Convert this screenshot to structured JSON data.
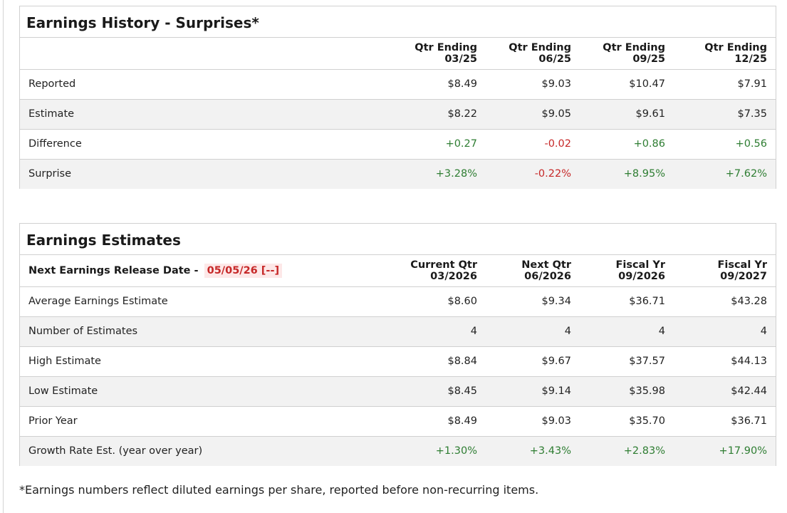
{
  "history": {
    "title": "Earnings History - Surprises*",
    "columns": [
      {
        "line1": "Qtr Ending",
        "line2": "03/25"
      },
      {
        "line1": "Qtr Ending",
        "line2": "06/25"
      },
      {
        "line1": "Qtr Ending",
        "line2": "09/25"
      },
      {
        "line1": "Qtr Ending",
        "line2": "12/25"
      }
    ],
    "rows": [
      {
        "label": "Reported",
        "values": [
          "$8.49",
          "$9.03",
          "$10.47",
          "$7.91"
        ]
      },
      {
        "label": "Estimate",
        "values": [
          "$8.22",
          "$9.05",
          "$9.61",
          "$7.35"
        ]
      },
      {
        "label": "Difference",
        "values": [
          "+0.27",
          "-0.02",
          "+0.86",
          "+0.56"
        ]
      },
      {
        "label": "Surprise",
        "values": [
          "+3.28%",
          "-0.22%",
          "+8.95%",
          "+7.62%"
        ]
      }
    ]
  },
  "estimates": {
    "title": "Earnings Estimates",
    "release_label": "Next Earnings Release Date - ",
    "release_date": "05/05/26 [--]",
    "columns": [
      {
        "line1": "Current Qtr",
        "line2": "03/2026"
      },
      {
        "line1": "Next Qtr",
        "line2": "06/2026"
      },
      {
        "line1": "Fiscal Yr",
        "line2": "09/2026"
      },
      {
        "line1": "Fiscal Yr",
        "line2": "09/2027"
      }
    ],
    "rows": [
      {
        "label": "Average Earnings Estimate",
        "values": [
          "$8.60",
          "$9.34",
          "$36.71",
          "$43.28"
        ]
      },
      {
        "label": "Number of Estimates",
        "values": [
          "4",
          "4",
          "4",
          "4"
        ]
      },
      {
        "label": "High Estimate",
        "values": [
          "$8.84",
          "$9.67",
          "$37.57",
          "$44.13"
        ]
      },
      {
        "label": "Low Estimate",
        "values": [
          "$8.45",
          "$9.14",
          "$35.98",
          "$42.44"
        ]
      },
      {
        "label": "Prior Year",
        "values": [
          "$8.49",
          "$9.03",
          "$35.70",
          "$36.71"
        ]
      },
      {
        "label": "Growth Rate Est. (year over year)",
        "values": [
          "+1.30%",
          "+3.43%",
          "+2.83%",
          "+17.90%"
        ]
      }
    ]
  },
  "footnote": "*Earnings numbers reflect diluted earnings per share, reported before non-recurring items.",
  "colors": {
    "positive": "#2e7d32",
    "negative": "#c62828",
    "row_alt": "#f2f2f2",
    "border": "#d0d0d0"
  }
}
